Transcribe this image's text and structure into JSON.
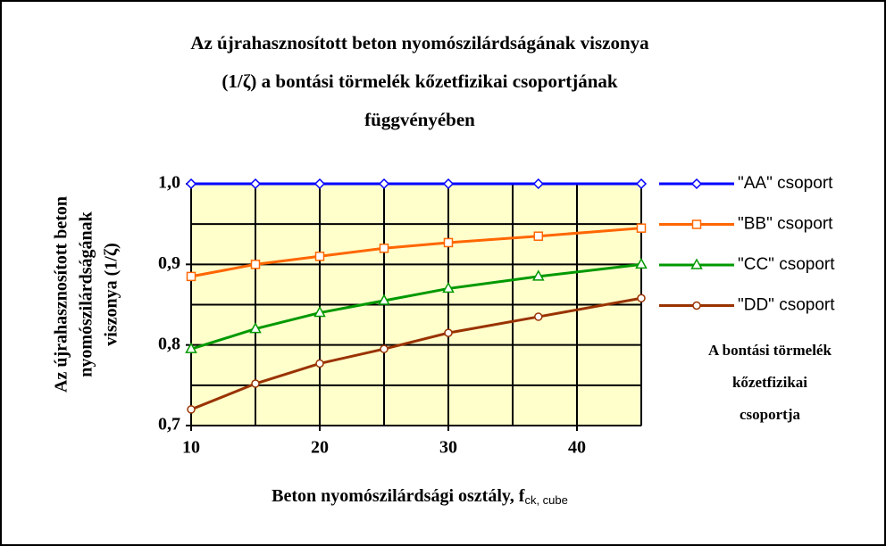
{
  "chart_data": {
    "type": "line",
    "title": [
      "Az újrahasznosított beton nyomószilárdságának viszonya",
      "(1/ζ) a bontási törmelék kőzetfizikai csoportjának",
      "függvényében"
    ],
    "y_label": [
      "Az újrahasznosított beton",
      "nyomószilárdságának",
      "viszonya (1/ζ)"
    ],
    "x_label": {
      "text": "Beton nyomószilárdsági osztály, f",
      "subscript": "ck, cube"
    },
    "legend_title": [
      "A bontási törmelék",
      "kőzetfizikai",
      "csoportja"
    ],
    "legend": "right",
    "x": [
      10,
      15,
      20,
      25,
      30,
      37,
      45
    ],
    "series": [
      {
        "name": "\"AA\" csoport",
        "color": "#0000ff",
        "marker": "diamond",
        "values": [
          1.0,
          1.0,
          1.0,
          1.0,
          1.0,
          1.0,
          1.0
        ]
      },
      {
        "name": "\"BB\" csoport",
        "color": "#ff6600",
        "marker": "square",
        "values": [
          0.885,
          0.9,
          0.91,
          0.92,
          0.927,
          0.935,
          0.945
        ]
      },
      {
        "name": "\"CC\" csoport",
        "color": "#009900",
        "marker": "triangle",
        "values": [
          0.795,
          0.82,
          0.84,
          0.855,
          0.87,
          0.885,
          0.9
        ]
      },
      {
        "name": "\"DD\" csoport",
        "color": "#993300",
        "marker": "circle",
        "values": [
          0.72,
          0.752,
          0.777,
          0.795,
          0.815,
          0.835,
          0.858
        ]
      }
    ],
    "xlim": [
      10,
      45
    ],
    "xticks": [
      10,
      20,
      30,
      40
    ],
    "xgrid": [
      10,
      15,
      20,
      25,
      30,
      35,
      40,
      45
    ],
    "ylim": [
      0.7,
      1.0
    ],
    "yticks": [
      {
        "value": 0.7,
        "label": "0,7"
      },
      {
        "value": 0.8,
        "label": "0,8"
      },
      {
        "value": 0.9,
        "label": "0,9"
      },
      {
        "value": 1.0,
        "label": "1,0"
      }
    ],
    "ygrid": [
      0.7,
      0.75,
      0.8,
      0.85,
      0.9,
      0.95,
      1.0
    ],
    "grid": true,
    "plot_background": "#ffffcc"
  }
}
